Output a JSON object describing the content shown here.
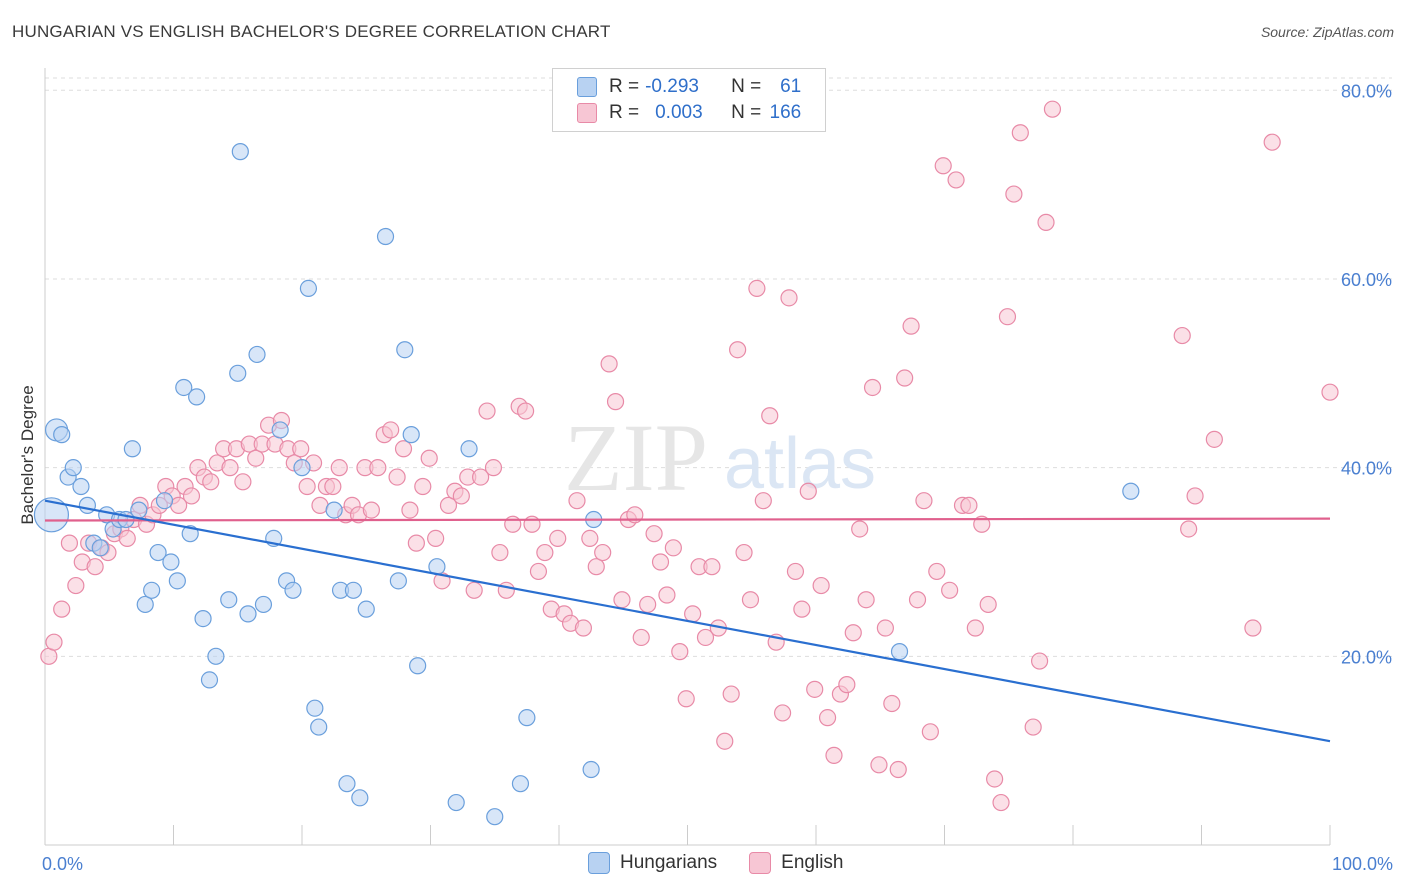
{
  "title": "HUNGARIAN VS ENGLISH BACHELOR'S DEGREE CORRELATION CHART",
  "source": "Source: ZipAtlas.com",
  "watermark": {
    "zip": "ZIP",
    "atlas": "atlas"
  },
  "legend": {
    "rows": [
      {
        "r_label": "R =",
        "r_value": "-0.293",
        "n_label": "N =",
        "n_value": "61"
      },
      {
        "r_label": "R =",
        "r_value": "0.003",
        "n_label": "N =",
        "n_value": "166"
      }
    ]
  },
  "bottom_legend": [
    "Hungarians",
    "English"
  ],
  "colors": {
    "blue_fill": "#b8d2f2",
    "blue_stroke": "#6a9fdc",
    "blue_line": "#2a6fd0",
    "pink_fill": "#f7c6d4",
    "pink_stroke": "#e88aa7",
    "pink_line": "#e0608d",
    "axis_text": "#4a7fd0",
    "grid": "#dddddd"
  },
  "chart_data": {
    "type": "scatter",
    "title": "HUNGARIAN VS ENGLISH BACHELOR'S DEGREE CORRELATION CHART",
    "xlabel": "",
    "ylabel": "Bachelor's Degree",
    "xlim": [
      0,
      100
    ],
    "ylim": [
      0,
      83
    ],
    "x_tick_labels": [
      "0.0%",
      "100.0%"
    ],
    "y_ticks": [
      20,
      40,
      60,
      80
    ],
    "y_tick_labels": [
      "20.0%",
      "40.0%",
      "60.0%",
      "80.0%"
    ],
    "grid": true,
    "series": [
      {
        "name": "Hungarians",
        "color": "blue",
        "r": -0.293,
        "n": 61,
        "trend": {
          "x": [
            0,
            100
          ],
          "y": [
            36.5,
            11.0
          ]
        },
        "points": [
          [
            0.5,
            35.0,
            "big"
          ],
          [
            0.9,
            44.0,
            "med"
          ],
          [
            1.3,
            43.5
          ],
          [
            1.8,
            39.0
          ],
          [
            2.2,
            40.0
          ],
          [
            2.8,
            38.0
          ],
          [
            3.3,
            36.0
          ],
          [
            3.8,
            32.0
          ],
          [
            4.3,
            31.5
          ],
          [
            4.8,
            35.0
          ],
          [
            5.3,
            33.5
          ],
          [
            5.8,
            34.5
          ],
          [
            6.3,
            34.5
          ],
          [
            6.8,
            42.0
          ],
          [
            7.3,
            35.5
          ],
          [
            7.8,
            25.5
          ],
          [
            8.3,
            27.0
          ],
          [
            8.8,
            31.0
          ],
          [
            9.3,
            36.5
          ],
          [
            9.8,
            30.0
          ],
          [
            10.3,
            28.0
          ],
          [
            10.8,
            48.5
          ],
          [
            11.3,
            33.0
          ],
          [
            11.8,
            47.5
          ],
          [
            12.3,
            24.0
          ],
          [
            12.8,
            17.5
          ],
          [
            13.3,
            20.0
          ],
          [
            14.3,
            26.0
          ],
          [
            15.0,
            50.0
          ],
          [
            15.2,
            73.5
          ],
          [
            15.8,
            24.5
          ],
          [
            16.5,
            52.0
          ],
          [
            17.0,
            25.5
          ],
          [
            17.8,
            32.5
          ],
          [
            18.3,
            44.0
          ],
          [
            18.8,
            28.0
          ],
          [
            19.3,
            27.0
          ],
          [
            20.0,
            40.0
          ],
          [
            20.5,
            59.0
          ],
          [
            21.0,
            14.5
          ],
          [
            21.3,
            12.5
          ],
          [
            22.5,
            35.5
          ],
          [
            23.0,
            27.0
          ],
          [
            23.5,
            6.5
          ],
          [
            24.0,
            27.0
          ],
          [
            24.5,
            5.0
          ],
          [
            25.0,
            25.0
          ],
          [
            26.5,
            64.5
          ],
          [
            27.5,
            28.0
          ],
          [
            28.0,
            52.5
          ],
          [
            28.5,
            43.5
          ],
          [
            29.0,
            19.0
          ],
          [
            30.5,
            29.5
          ],
          [
            32.0,
            4.5
          ],
          [
            33.0,
            42.0
          ],
          [
            35.0,
            3.0
          ],
          [
            37.0,
            6.5
          ],
          [
            37.5,
            13.5
          ],
          [
            42.5,
            8.0
          ],
          [
            42.7,
            34.5
          ],
          [
            66.5,
            20.5
          ],
          [
            84.5,
            37.5
          ]
        ]
      },
      {
        "name": "English",
        "color": "pink",
        "r": 0.003,
        "n": 166,
        "trend": {
          "x": [
            0,
            100
          ],
          "y": [
            34.4,
            34.6
          ]
        },
        "points": [
          [
            0.3,
            20.0
          ],
          [
            0.7,
            21.5
          ],
          [
            1.3,
            25.0
          ],
          [
            1.9,
            32.0
          ],
          [
            2.4,
            27.5
          ],
          [
            2.9,
            30.0
          ],
          [
            3.4,
            32.0
          ],
          [
            3.9,
            29.5
          ],
          [
            4.4,
            31.5
          ],
          [
            4.9,
            31.0
          ],
          [
            5.4,
            33.0
          ],
          [
            5.9,
            33.5
          ],
          [
            6.4,
            32.5
          ],
          [
            6.9,
            34.5
          ],
          [
            7.4,
            36.0
          ],
          [
            7.9,
            34.0
          ],
          [
            8.4,
            35.0
          ],
          [
            8.9,
            36.0
          ],
          [
            9.4,
            38.0
          ],
          [
            9.9,
            37.0
          ],
          [
            10.4,
            36.0
          ],
          [
            10.9,
            38.0
          ],
          [
            11.4,
            37.0
          ],
          [
            11.9,
            40.0
          ],
          [
            12.4,
            39.0
          ],
          [
            12.9,
            38.5
          ],
          [
            13.4,
            40.5
          ],
          [
            13.9,
            42.0
          ],
          [
            14.4,
            40.0
          ],
          [
            14.9,
            42.0
          ],
          [
            15.4,
            38.5
          ],
          [
            15.9,
            42.5
          ],
          [
            16.4,
            41.0
          ],
          [
            16.9,
            42.5
          ],
          [
            17.4,
            44.5
          ],
          [
            17.9,
            42.5
          ],
          [
            18.4,
            45.0
          ],
          [
            18.9,
            42.0
          ],
          [
            19.4,
            40.5
          ],
          [
            19.9,
            42.0
          ],
          [
            20.4,
            38.0
          ],
          [
            20.9,
            40.5
          ],
          [
            21.4,
            36.0
          ],
          [
            21.9,
            38.0
          ],
          [
            22.4,
            38.0
          ],
          [
            22.9,
            40.0
          ],
          [
            23.4,
            35.0
          ],
          [
            23.9,
            36.0
          ],
          [
            24.4,
            35.0
          ],
          [
            24.9,
            40.0
          ],
          [
            25.4,
            35.5
          ],
          [
            25.9,
            40.0
          ],
          [
            26.4,
            43.5
          ],
          [
            26.9,
            44.0
          ],
          [
            27.4,
            39.0
          ],
          [
            27.9,
            42.0
          ],
          [
            28.4,
            35.5
          ],
          [
            28.9,
            32.0
          ],
          [
            29.4,
            38.0
          ],
          [
            29.9,
            41.0
          ],
          [
            30.4,
            32.5
          ],
          [
            30.9,
            28.0
          ],
          [
            31.4,
            36.0
          ],
          [
            31.9,
            37.5
          ],
          [
            32.4,
            37.0
          ],
          [
            32.9,
            39.0
          ],
          [
            33.4,
            27.0
          ],
          [
            33.9,
            39.0
          ],
          [
            34.4,
            46.0
          ],
          [
            34.9,
            40.0
          ],
          [
            35.4,
            31.0
          ],
          [
            35.9,
            27.0
          ],
          [
            36.4,
            34.0
          ],
          [
            36.9,
            46.5
          ],
          [
            37.4,
            46.0
          ],
          [
            37.9,
            34.0
          ],
          [
            38.4,
            29.0
          ],
          [
            38.9,
            31.0
          ],
          [
            39.4,
            25.0
          ],
          [
            39.9,
            32.5
          ],
          [
            40.4,
            24.5
          ],
          [
            40.9,
            23.5
          ],
          [
            41.4,
            36.5
          ],
          [
            41.9,
            23.0
          ],
          [
            42.4,
            32.5
          ],
          [
            42.9,
            29.5
          ],
          [
            43.4,
            31.0
          ],
          [
            43.9,
            51.0
          ],
          [
            44.4,
            47.0
          ],
          [
            44.9,
            26.0
          ],
          [
            45.4,
            34.5
          ],
          [
            45.9,
            35.0
          ],
          [
            46.4,
            22.0
          ],
          [
            46.9,
            25.5
          ],
          [
            47.4,
            33.0
          ],
          [
            47.9,
            30.0
          ],
          [
            48.4,
            26.5
          ],
          [
            48.9,
            31.5
          ],
          [
            49.4,
            20.5
          ],
          [
            49.9,
            15.5
          ],
          [
            50.4,
            24.5
          ],
          [
            50.9,
            29.5
          ],
          [
            51.4,
            22.0
          ],
          [
            51.9,
            29.5
          ],
          [
            52.4,
            23.0
          ],
          [
            52.9,
            11.0
          ],
          [
            53.4,
            16.0
          ],
          [
            53.9,
            52.5
          ],
          [
            54.4,
            31.0
          ],
          [
            54.9,
            26.0
          ],
          [
            55.4,
            59.0
          ],
          [
            55.9,
            36.5
          ],
          [
            56.4,
            45.5
          ],
          [
            56.9,
            21.5
          ],
          [
            57.4,
            14.0
          ],
          [
            57.9,
            58.0
          ],
          [
            58.4,
            29.0
          ],
          [
            58.9,
            25.0
          ],
          [
            59.4,
            37.5
          ],
          [
            59.9,
            16.5
          ],
          [
            60.4,
            27.5
          ],
          [
            60.9,
            13.5
          ],
          [
            61.4,
            9.5
          ],
          [
            61.9,
            16.0
          ],
          [
            62.4,
            17.0
          ],
          [
            62.9,
            22.5
          ],
          [
            63.4,
            33.5
          ],
          [
            63.9,
            26.0
          ],
          [
            64.4,
            48.5
          ],
          [
            64.9,
            8.5
          ],
          [
            65.4,
            23.0
          ],
          [
            65.9,
            15.0
          ],
          [
            66.4,
            8.0
          ],
          [
            66.9,
            49.5
          ],
          [
            67.4,
            55.0
          ],
          [
            67.9,
            26.0
          ],
          [
            68.4,
            36.5
          ],
          [
            68.9,
            12.0
          ],
          [
            69.4,
            29.0
          ],
          [
            69.9,
            72.0
          ],
          [
            70.4,
            27.0
          ],
          [
            70.9,
            70.5
          ],
          [
            71.4,
            36.0
          ],
          [
            71.9,
            36.0
          ],
          [
            72.4,
            23.0
          ],
          [
            72.9,
            34.0
          ],
          [
            73.4,
            25.5
          ],
          [
            73.9,
            7.0
          ],
          [
            74.4,
            4.5
          ],
          [
            74.9,
            56.0
          ],
          [
            75.4,
            69.0
          ],
          [
            75.9,
            75.5
          ],
          [
            76.9,
            12.5
          ],
          [
            77.4,
            19.5
          ],
          [
            77.9,
            66.0
          ],
          [
            78.4,
            78.0
          ],
          [
            88.5,
            54.0
          ],
          [
            89.0,
            33.5
          ],
          [
            89.5,
            37.0
          ],
          [
            91.0,
            43.0
          ],
          [
            94.0,
            23.0
          ],
          [
            95.5,
            74.5
          ],
          [
            100.0,
            48.0
          ]
        ]
      }
    ]
  }
}
